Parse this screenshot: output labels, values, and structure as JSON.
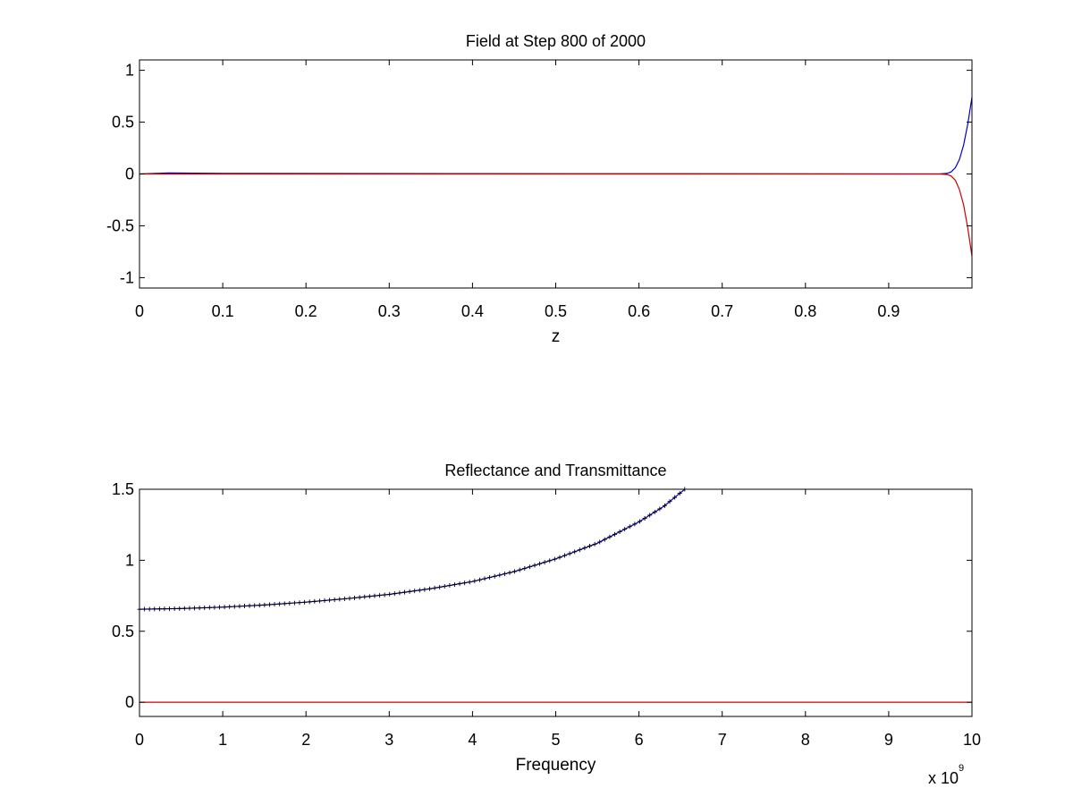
{
  "chart_data": [
    {
      "type": "line",
      "title": "Field at Step 800 of 2000",
      "xlabel": "z",
      "ylabel": "",
      "xlim": [
        0,
        1
      ],
      "ylim": [
        -1.1,
        1.1
      ],
      "xticks": [
        0,
        0.1,
        0.2,
        0.3,
        0.4,
        0.5,
        0.6,
        0.7,
        0.8,
        0.9
      ],
      "xtick_labels": [
        "0",
        "0.1",
        "0.2",
        "0.3",
        "0.4",
        "0.5",
        "0.6",
        "0.7",
        "0.8",
        "0.9"
      ],
      "yticks": [
        1,
        0.5,
        0,
        -0.5,
        -1
      ],
      "ytick_labels": [
        "1",
        "0.5",
        "0",
        "-0.5",
        "-1"
      ],
      "grid": false,
      "series": [
        {
          "color": "#0000cc",
          "x": [
            0,
            0.035,
            0.1,
            0.96,
            0.97,
            0.975,
            0.98,
            0.985,
            0.99,
            0.995,
            1.0
          ],
          "y": [
            0,
            0.01,
            0.005,
            0,
            0.005,
            0.02,
            0.06,
            0.14,
            0.28,
            0.48,
            0.74
          ]
        },
        {
          "color": "#cc0000",
          "x": [
            0,
            0.96,
            0.97,
            0.975,
            0.98,
            0.985,
            0.99,
            0.995,
            1.0
          ],
          "y": [
            0,
            0,
            -0.005,
            -0.02,
            -0.06,
            -0.15,
            -0.3,
            -0.52,
            -0.79
          ]
        }
      ]
    },
    {
      "type": "line",
      "title": "Reflectance and Transmittance",
      "xlabel": "Frequency",
      "ylabel": "",
      "x_multiplier_base": "x 10",
      "x_multiplier_exp": "9",
      "xlim": [
        0,
        10
      ],
      "ylim": [
        -0.1,
        1.5
      ],
      "xticks": [
        0,
        1,
        2,
        3,
        4,
        5,
        6,
        7,
        8,
        9,
        10
      ],
      "xtick_labels": [
        "0",
        "1",
        "2",
        "3",
        "4",
        "5",
        "6",
        "7",
        "8",
        "9",
        "10"
      ],
      "yticks": [
        1.5,
        1,
        0.5,
        0
      ],
      "ytick_labels": [
        "1.5",
        "1",
        "0.5",
        "0"
      ],
      "grid": false,
      "series": [
        {
          "color": "#0000cc",
          "marker": "+",
          "x": [
            0,
            0.5,
            1,
            1.5,
            2,
            2.5,
            3,
            3.5,
            4,
            4.5,
            5,
            5.5,
            6,
            6.3,
            6.55
          ],
          "y": [
            0.655,
            0.66,
            0.67,
            0.685,
            0.705,
            0.73,
            0.76,
            0.8,
            0.85,
            0.92,
            1.01,
            1.12,
            1.27,
            1.38,
            1.5
          ]
        },
        {
          "color": "#cc0000",
          "x": [
            0,
            10
          ],
          "y": [
            0,
            0
          ]
        }
      ]
    }
  ]
}
